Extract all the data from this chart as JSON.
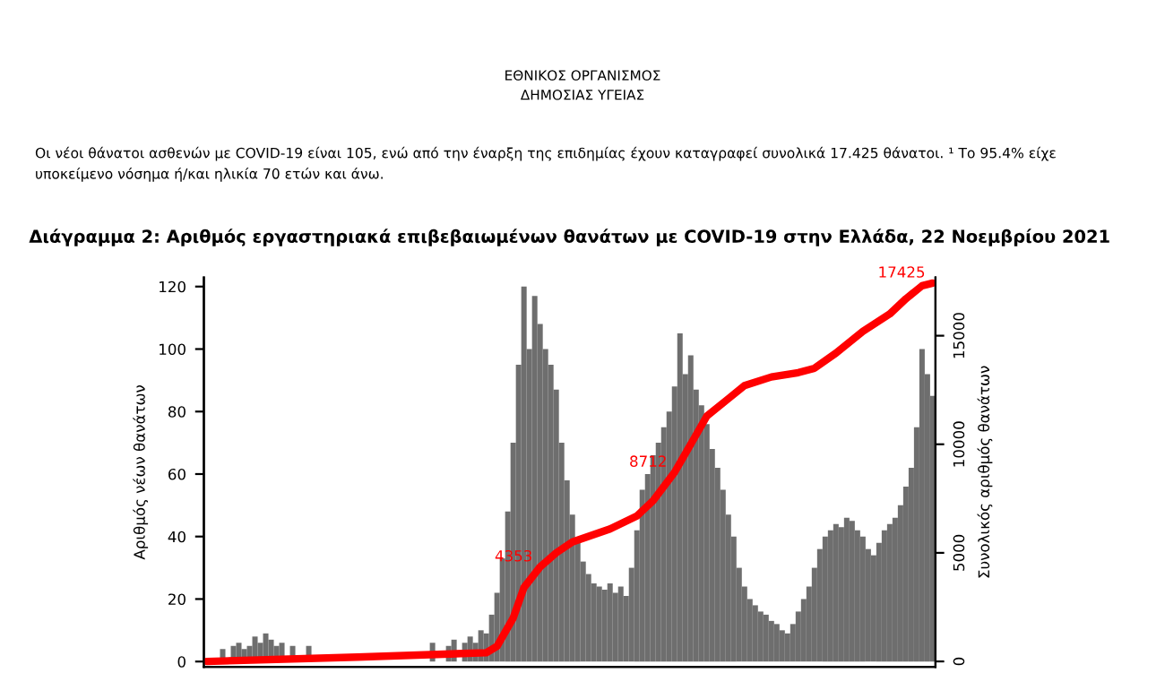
{
  "chart_data": {
    "type": "bar",
    "title": "Διάγραμμα 2: Αριθμός εργαστηριακά επιβεβαιωμένων θανάτων με COVID-19 στην Ελλάδα, 22 Νοεμβρίου 2021",
    "ylabel": "Αριθμός νέων θανάτων",
    "y2label": "Συνολικός αριθμός θανάτων",
    "annotations": [
      "ΕΘΝΙΚΟΣ ΟΡΓΑΝΙΣΜΟΣ\nΔΗΜΟΣΙΑΣ ΥΓΕΙΑΣ",
      "Οι νέοι θάνατοι ασθενών με COVID-19 είναι 105, ενώ από την έναρξη της επιδημίας έχουν καταγραφεί συνολικά 17.425 θάνατοι. ¹ Το 95.4% είχε\nυποκείμενο νόσημα ή/και ηλικία 70 ετών και άνω."
    ],
    "categories": [
      null,
      null,
      null,
      null,
      null,
      null,
      null,
      null,
      null,
      null,
      null,
      null,
      null,
      null,
      null,
      null,
      null,
      null,
      null,
      null,
      null,
      null,
      null,
      null,
      null,
      null,
      null,
      null,
      null,
      null,
      null,
      null,
      null,
      null,
      null,
      null,
      null,
      null,
      null,
      null,
      null,
      null,
      null,
      null,
      null,
      null,
      null,
      null,
      null,
      null,
      null,
      null,
      null,
      null,
      null,
      null,
      null,
      null,
      null,
      null,
      null,
      null,
      null,
      null,
      null,
      null,
      null,
      null,
      null,
      null,
      null,
      null,
      null,
      null,
      null,
      null,
      null,
      null,
      null,
      null,
      null,
      null,
      null,
      null,
      null,
      null,
      null,
      null,
      null,
      null,
      null,
      null,
      null,
      null,
      null,
      null,
      null,
      null,
      null,
      null,
      null,
      null,
      null,
      null,
      null,
      null,
      null,
      null,
      null,
      null,
      null,
      null,
      null,
      null,
      null,
      null,
      null,
      null,
      null,
      null,
      null,
      null,
      null,
      null,
      null,
      null,
      null,
      null,
      null,
      null,
      null,
      null,
      null,
      null,
      null,
      null
    ],
    "series": [
      {
        "color": "#6e6e6e",
        "values": [
          null,
          null,
          null,
          4,
          null,
          5,
          6,
          4,
          5,
          8,
          6,
          9,
          7,
          5,
          6,
          null,
          5,
          null,
          null,
          5,
          null,
          null,
          null,
          null,
          null,
          null,
          null,
          null,
          null,
          null,
          null,
          null,
          null,
          null,
          null,
          null,
          null,
          null,
          null,
          null,
          null,
          null,
          6,
          null,
          null,
          5,
          7,
          null,
          6,
          8,
          6,
          10,
          9,
          15,
          22,
          33,
          48,
          70,
          95,
          120,
          100,
          117,
          108,
          100,
          95,
          87,
          70,
          58,
          47,
          38,
          32,
          28,
          25,
          24,
          23,
          25,
          22,
          24,
          21,
          30,
          42,
          55,
          60,
          66,
          70,
          75,
          80,
          88,
          105,
          92,
          98,
          87,
          82,
          76,
          68,
          62,
          55,
          47,
          40,
          30,
          24,
          20,
          18,
          16,
          15,
          13,
          12,
          10,
          9,
          12,
          16,
          20,
          24,
          30,
          36,
          40,
          42,
          44,
          43,
          46,
          45,
          42,
          40,
          36,
          34,
          38,
          42,
          44,
          46,
          50,
          56,
          62,
          75,
          100,
          92,
          85
        ]
      },
      {
        "type": "line",
        "axis": "y2",
        "color": "#ff0000",
        "values": [
          0,
          null,
          null,
          null,
          null,
          null,
          null,
          null,
          null,
          null,
          null,
          null,
          null,
          null,
          null,
          null,
          null,
          null,
          null,
          null,
          null,
          null,
          null,
          null,
          null,
          null,
          null,
          null,
          200,
          null,
          null,
          null,
          null,
          null,
          null,
          null,
          null,
          null,
          null,
          null,
          null,
          null,
          null,
          null,
          null,
          null,
          null,
          null,
          null,
          null,
          null,
          null,
          400,
          null,
          700,
          null,
          null,
          2000,
          null,
          3400,
          null,
          null,
          4353,
          null,
          null,
          5000,
          null,
          null,
          5500,
          null,
          null,
          null,
          null,
          null,
          null,
          6100,
          null,
          null,
          null,
          null,
          6700,
          null,
          null,
          7400,
          null,
          null,
          null,
          8712,
          null,
          null,
          10000,
          null,
          null,
          11300,
          null,
          null,
          null,
          12100,
          null,
          null,
          12700,
          null,
          null,
          null,
          null,
          13100,
          null,
          null,
          null,
          null,
          13300,
          null,
          null,
          13500,
          null,
          null,
          null,
          14200,
          null,
          null,
          null,
          null,
          15200,
          null,
          null,
          null,
          null,
          16000,
          null,
          null,
          16700,
          null,
          null,
          17300,
          null,
          17425
        ],
        "value_labels": [
          null,
          null,
          null,
          null,
          null,
          null,
          null,
          null,
          null,
          null,
          null,
          null,
          null,
          null,
          null,
          null,
          null,
          null,
          null,
          null,
          null,
          null,
          null,
          null,
          null,
          null,
          null,
          null,
          null,
          null,
          null,
          null,
          null,
          null,
          null,
          null,
          null,
          null,
          null,
          null,
          null,
          null,
          null,
          null,
          null,
          null,
          null,
          null,
          null,
          null,
          null,
          null,
          null,
          null,
          null,
          null,
          null,
          null,
          null,
          null,
          null,
          null,
          "4353",
          null,
          null,
          null,
          null,
          null,
          null,
          null,
          null,
          null,
          null,
          null,
          null,
          null,
          null,
          null,
          null,
          null,
          null,
          null,
          null,
          null,
          null,
          null,
          null,
          "8712",
          null,
          null,
          null,
          null,
          null,
          null,
          null,
          null,
          null,
          null,
          null,
          null,
          null,
          null,
          null,
          null,
          null,
          null,
          null,
          null,
          null,
          null,
          null,
          null,
          null,
          null,
          null,
          null,
          null,
          null,
          null,
          null,
          null,
          null,
          null,
          null,
          null,
          null,
          null,
          null,
          null,
          null,
          null,
          null,
          null,
          null,
          null,
          "17425"
        ]
      }
    ],
    "ylim": [
      -1.7,
      122.9
    ],
    "yticks": [
      0,
      20,
      40,
      60,
      80,
      100,
      120
    ],
    "y2lim": [
      -250,
      17680
    ],
    "y2ticks": [
      0,
      5000,
      10000,
      15000
    ],
    "grid": false,
    "legend": false,
    "marker": "none",
    "line_style": "solid"
  }
}
